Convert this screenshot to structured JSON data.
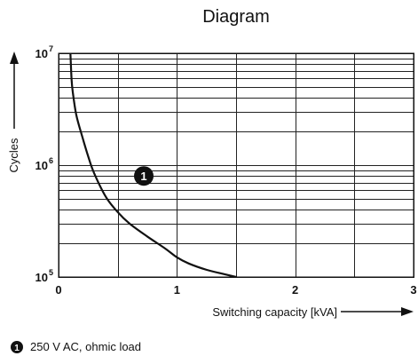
{
  "chart_data": {
    "type": "line",
    "title": "Diagram",
    "xlabel": "Switching capacity [kVA]",
    "ylabel": "Cycles",
    "x_scale": "linear",
    "y_scale": "log",
    "xlim": [
      0,
      3
    ],
    "ylim": [
      100000,
      10000000
    ],
    "x_ticks": [
      "0",
      "1",
      "2",
      "3"
    ],
    "y_ticks": [
      {
        "value": 100000,
        "base": "10",
        "exp": "5"
      },
      {
        "value": 1000000,
        "base": "10",
        "exp": "6"
      },
      {
        "value": 10000000,
        "base": "10",
        "exp": "7"
      }
    ],
    "grid": true,
    "series": [
      {
        "marker": "1",
        "x": [
          0.1,
          0.11,
          0.12,
          0.15,
          0.2,
          0.25,
          0.3,
          0.4,
          0.5,
          0.6,
          0.75,
          0.9,
          1.0,
          1.1,
          1.25,
          1.4,
          1.5
        ],
        "y": [
          10000000,
          5800000,
          4500000,
          2800000,
          1800000,
          1200000,
          850000,
          520000,
          380000,
          300000,
          230000,
          180000,
          150000,
          132000,
          116000,
          106000,
          100000
        ]
      }
    ],
    "annotations": [
      {
        "marker": "1",
        "x": 0.72,
        "y": 800000
      }
    ],
    "legend": [
      {
        "marker": "1",
        "label": "250 V AC, ohmic load"
      }
    ],
    "legend_position": "bottom-left"
  }
}
